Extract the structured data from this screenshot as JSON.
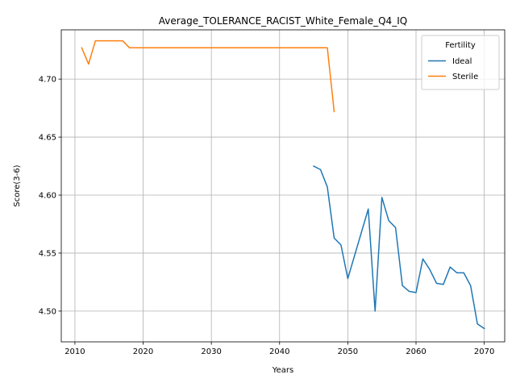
{
  "chart_data": {
    "type": "line",
    "title": "Average_TOLERANCE_RACIST_White_Female_Q4_IQ",
    "xlabel": "Years",
    "ylabel": "Score(3-6)",
    "xlim": [
      2008,
      2073
    ],
    "ylim": [
      4.4735,
      4.7425
    ],
    "xticks": [
      2010,
      2020,
      2030,
      2040,
      2050,
      2060,
      2070
    ],
    "yticks": [
      4.5,
      4.55,
      4.6,
      4.65,
      4.7
    ],
    "ytick_labels": [
      "4.50",
      "4.55",
      "4.60",
      "4.65",
      "4.70"
    ],
    "grid": true,
    "legend": {
      "title": "Fertility",
      "placement": "top-right"
    },
    "series": [
      {
        "name": "Ideal",
        "color": "#1f77b4",
        "x": [
          2045,
          2046,
          2047,
          2048,
          2049,
          2050,
          2053,
          2054,
          2055,
          2056,
          2057,
          2058,
          2059,
          2060,
          2061,
          2062,
          2063,
          2064,
          2065,
          2066,
          2067,
          2068,
          2069,
          2070
        ],
        "y": [
          4.625,
          4.622,
          4.607,
          4.563,
          4.557,
          4.528,
          4.588,
          4.5,
          4.598,
          4.578,
          4.572,
          4.522,
          4.517,
          4.516,
          4.545,
          4.536,
          4.524,
          4.523,
          4.538,
          4.533,
          4.533,
          4.522,
          4.489,
          4.485
        ]
      },
      {
        "name": "Sterile",
        "color": "#ff7f0e",
        "x": [
          2011,
          2012,
          2013,
          2014,
          2015,
          2016,
          2017,
          2018,
          2047,
          2048
        ],
        "y": [
          4.727,
          4.713,
          4.733,
          4.733,
          4.733,
          4.733,
          4.733,
          4.727,
          4.727,
          4.672
        ]
      }
    ]
  }
}
